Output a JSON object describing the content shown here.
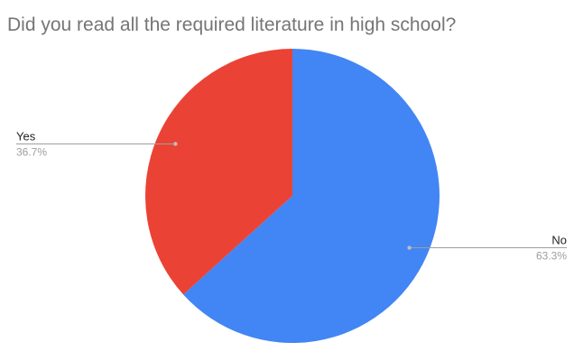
{
  "chart_data": {
    "type": "pie",
    "title": "Did you read all the required literature in high school?",
    "slices": [
      {
        "label": "No",
        "value": 63.3,
        "percent_label": "63.3%",
        "color": "#4285f4"
      },
      {
        "label": "Yes",
        "value": 36.7,
        "percent_label": "36.7%",
        "color": "#ea4335"
      }
    ],
    "start_angle": "top (12 o'clock), clockwise",
    "legend": "none (callout labels on slices)"
  }
}
